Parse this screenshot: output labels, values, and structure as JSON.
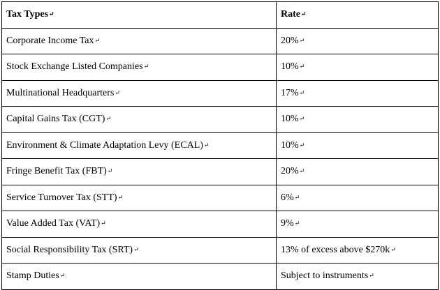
{
  "header": {
    "col1": "Tax Types",
    "col2": "Rate"
  },
  "rows": [
    {
      "tax": "Corporate Income Tax",
      "rate": "20%"
    },
    {
      "tax": "Stock Exchange Listed Companies",
      "rate": "10%"
    },
    {
      "tax": "Multinational Headquarters",
      "rate": "17%"
    },
    {
      "tax": "Capital Gains Tax (CGT)",
      "rate": "10%"
    },
    {
      "tax": "Environment & Climate Adaptation Levy (ECAL)",
      "rate": "10%"
    },
    {
      "tax": "Fringe Benefit Tax (FBT)",
      "rate": "20%"
    },
    {
      "tax": "Service Turnover Tax (STT)",
      "rate": "6%"
    },
    {
      "tax": "Value Added Tax (VAT)",
      "rate": "9%"
    },
    {
      "tax": "Social Responsibility Tax (SRT)",
      "rate": "13% of excess above $270k"
    },
    {
      "tax": "Stamp Duties",
      "rate": "Subject to instruments"
    }
  ],
  "paragraph_mark": "↵"
}
